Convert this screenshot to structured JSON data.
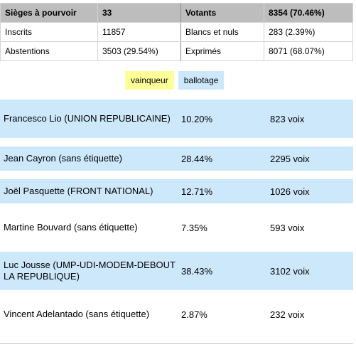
{
  "summary": {
    "header": [
      "Sièges à pourvoir",
      "33",
      "Votants",
      "8354 (70.46%)"
    ],
    "row1": [
      "Inscrits",
      "11857",
      "Blancs et nuls",
      "283 (2.39%)"
    ],
    "row2": [
      "Abstentions",
      "3503 (29.54%)",
      "Exprimés",
      "8071 (68.07%)"
    ]
  },
  "legend": {
    "winner": "vainqueur",
    "runoff": "ballotage"
  },
  "colors": {
    "runoff_bg": "#cde8fb",
    "winner_bg": "#ffff99",
    "header_bg": "#bdbdbd"
  },
  "candidates": [
    {
      "name": "Francesco Lio (UNION REPUBLICAINE)",
      "percent": "10.20%",
      "votes": "823 voix"
    },
    {
      "name": "Jean Cayron (sans étiquette)",
      "percent": "28.44%",
      "votes": "2295 voix"
    },
    {
      "name": "Joël Pasquette (FRONT NATIONAL)",
      "percent": "12.71%",
      "votes": "1026 voix"
    },
    {
      "name": "Martine Bouvard (sans étiquette)",
      "percent": "7.35%",
      "votes": "593 voix"
    },
    {
      "name": "Luc Jousse (UMP-UDI-MODEM-DEBOUT LA REPUBLIQUE)",
      "percent": "38.43%",
      "votes": "3102 voix"
    },
    {
      "name": "Vincent Adelantado (sans étiquette)",
      "percent": "2.87%",
      "votes": "232 voix"
    }
  ]
}
